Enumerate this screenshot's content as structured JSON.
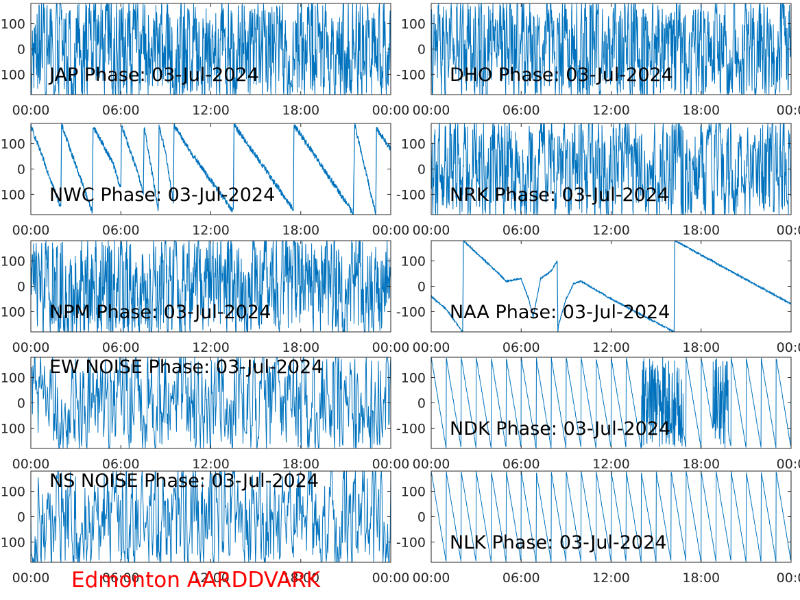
{
  "figure": {
    "footer": "Edmonton AARDDVARK",
    "footer_color": "#ff0000",
    "line_color": "#0072bd"
  },
  "chart_data": [
    {
      "type": "line",
      "title": "JAP Phase: 03-Jul-2024",
      "pattern": "noise",
      "density": 1.0,
      "x_ticks": [
        "00:00",
        "06:00",
        "12:00",
        "18:00",
        "00:00"
      ],
      "y_ticks": [
        "100",
        "0",
        "100"
      ],
      "xlim": [
        "00:00",
        "24:00"
      ],
      "ylim": [
        -180,
        180
      ],
      "grid": false
    },
    {
      "type": "line",
      "title": "DHO Phase: 03-Jul-2024",
      "pattern": "noise",
      "density": 1.0,
      "x_ticks": [
        "00:00",
        "06:00",
        "12:00",
        "18:00",
        "00:0"
      ],
      "y_ticks": [
        "100",
        "0",
        "-100"
      ],
      "xlim": [
        "00:00",
        "24:00"
      ],
      "ylim": [
        -180,
        180
      ],
      "grid": false
    },
    {
      "type": "line",
      "title": "NWC Phase: 03-Jul-2024",
      "pattern": "wrap",
      "noise": 12,
      "points": [
        [
          0,
          170
        ],
        [
          2.0,
          -150
        ],
        [
          2.05,
          175
        ],
        [
          4.1,
          -170
        ],
        [
          4.15,
          170
        ],
        [
          5.5,
          20
        ],
        [
          6.0,
          -80
        ],
        [
          6.05,
          170
        ],
        [
          7.0,
          10
        ],
        [
          7.5,
          -100
        ],
        [
          7.55,
          170
        ],
        [
          8.5,
          -160
        ],
        [
          8.55,
          170
        ],
        [
          9.0,
          60
        ],
        [
          9.5,
          -130
        ],
        [
          9.55,
          175
        ],
        [
          10.5,
          80
        ],
        [
          13.5,
          -170
        ],
        [
          13.55,
          175
        ],
        [
          17.5,
          -160
        ],
        [
          17.55,
          175
        ],
        [
          21.5,
          -175
        ],
        [
          21.55,
          0
        ],
        [
          21.6,
          175
        ],
        [
          23.0,
          -180
        ],
        [
          23.05,
          160
        ],
        [
          24,
          80
        ]
      ],
      "x_ticks": [
        "00:00",
        "06:00",
        "12:00",
        "18:00",
        "00:00"
      ],
      "y_ticks": [
        "100",
        "0",
        "100"
      ],
      "xlim": [
        "00:00",
        "24:00"
      ],
      "ylim": [
        -180,
        180
      ],
      "grid": false
    },
    {
      "type": "line",
      "title": "NRK Phase: 03-Jul-2024",
      "pattern": "noise",
      "density": 0.9,
      "x_ticks": [
        "00:00",
        "06:00",
        "12:00",
        "18:00",
        "00:0"
      ],
      "y_ticks": [
        "100",
        "0",
        "-100"
      ],
      "xlim": [
        "00:00",
        "24:00"
      ],
      "ylim": [
        -180,
        180
      ],
      "grid": false
    },
    {
      "type": "line",
      "title": "NPM Phase: 03-Jul-2024",
      "pattern": "noise",
      "density": 0.95,
      "x_ticks": [
        "00:00",
        "06:00",
        "12:00",
        "18:00",
        "00:00"
      ],
      "y_ticks": [
        "100",
        "0",
        "100"
      ],
      "xlim": [
        "00:00",
        "24:00"
      ],
      "ylim": [
        -180,
        180
      ],
      "grid": false
    },
    {
      "type": "line",
      "title": "NAA Phase: 03-Jul-2024",
      "pattern": "wrap",
      "noise": 3,
      "points": [
        [
          0,
          -40
        ],
        [
          1.0,
          -90
        ],
        [
          2.1,
          -180
        ],
        [
          2.15,
          180
        ],
        [
          4.5,
          50
        ],
        [
          5.0,
          20
        ],
        [
          6.0,
          30
        ],
        [
          6.5,
          -50
        ],
        [
          6.8,
          -120
        ],
        [
          7.0,
          -60
        ],
        [
          7.3,
          30
        ],
        [
          8.0,
          60
        ],
        [
          8.4,
          100
        ],
        [
          8.45,
          -180
        ],
        [
          8.5,
          -150
        ],
        [
          9.0,
          -50
        ],
        [
          9.5,
          10
        ],
        [
          10.0,
          20
        ],
        [
          12.0,
          -50
        ],
        [
          16.2,
          -180
        ],
        [
          16.25,
          180
        ],
        [
          24,
          -70
        ]
      ],
      "x_ticks": [
        "00:00",
        "06:00",
        "12:00",
        "18:00",
        "00:0"
      ],
      "y_ticks": [
        "100",
        "0",
        "-100"
      ],
      "xlim": [
        "00:00",
        "24:00"
      ],
      "ylim": [
        -180,
        180
      ],
      "grid": false
    },
    {
      "type": "line",
      "title": "EW NOISE Phase: 03-Jul-2024",
      "pattern": "noise",
      "density": 0.6,
      "x_ticks": [
        "00:00",
        "06:00",
        "12:00",
        "18:00",
        "00:00"
      ],
      "y_ticks": [
        "100",
        "0",
        "100"
      ],
      "xlim": [
        "00:00",
        "24:00"
      ],
      "ylim": [
        -180,
        180
      ],
      "grid": false
    },
    {
      "type": "line",
      "title": "NDK Phase: 03-Jul-2024",
      "pattern": "sawtooth",
      "period": 1.0,
      "noise": 4,
      "noisy_ranges": [
        [
          14.0,
          16.8
        ],
        [
          18.8,
          19.8
        ]
      ],
      "x_ticks": [
        "00:00",
        "06:00",
        "12:00",
        "18:00",
        "00:0"
      ],
      "y_ticks": [
        "100",
        "0",
        "-100"
      ],
      "xlim": [
        "00:00",
        "24:00"
      ],
      "ylim": [
        -180,
        180
      ],
      "grid": false
    },
    {
      "type": "line",
      "title": "NS NOISE Phase: 03-Jul-2024",
      "pattern": "noise",
      "density": 0.6,
      "x_ticks": [
        "00:00",
        "06:00",
        "12:00",
        "18:00",
        "00:00"
      ],
      "y_ticks": [
        "100",
        "0",
        "100"
      ],
      "xlim": [
        "00:00",
        "24:00"
      ],
      "ylim": [
        -180,
        180
      ],
      "grid": false
    },
    {
      "type": "line",
      "title": "NLK Phase: 03-Jul-2024",
      "pattern": "sawtooth",
      "period": 1.0,
      "noise": 3,
      "noisy_ranges": [],
      "x_ticks": [
        "00:00",
        "06:00",
        "12:00",
        "18:00",
        "00:0"
      ],
      "y_ticks": [
        "100",
        "0",
        "-100"
      ],
      "xlim": [
        "00:00",
        "24:00"
      ],
      "ylim": [
        -180,
        180
      ],
      "grid": false
    }
  ]
}
